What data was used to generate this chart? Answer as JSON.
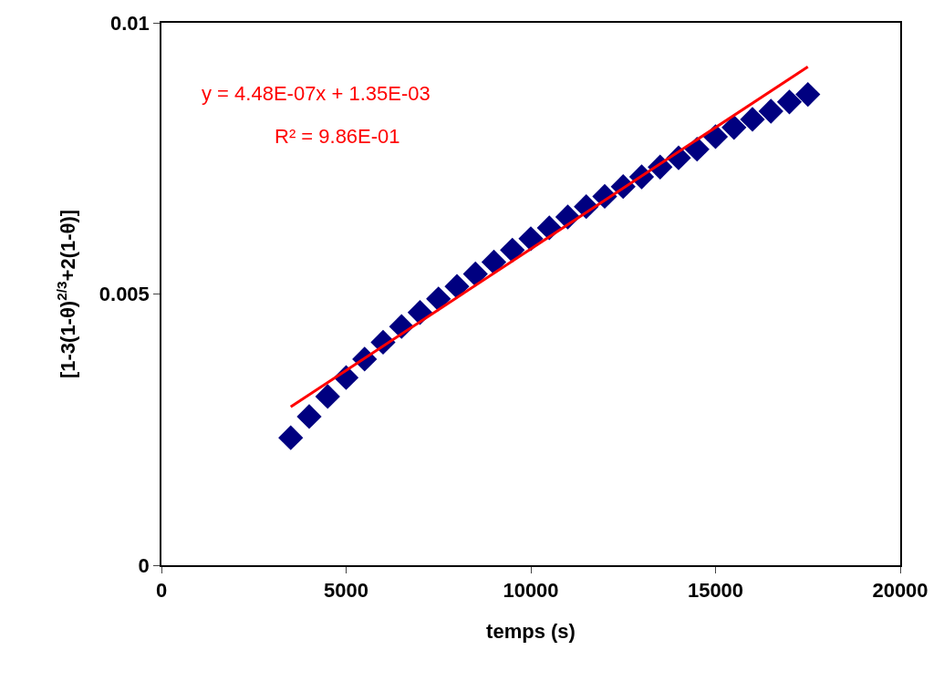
{
  "chart_data": {
    "type": "scatter",
    "xlabel": "temps (s)",
    "ylabel": "[1-3(1-θ)$^{2/3}$+2(1-θ)]",
    "series": [
      {
        "color": "#000080",
        "marker": "diamond",
        "x": [
          3500,
          4000,
          4500,
          5000,
          5500,
          6000,
          6500,
          7000,
          7500,
          8000,
          8500,
          9000,
          9500,
          10000,
          10500,
          11000,
          11500,
          12000,
          12500,
          13000,
          13500,
          14000,
          14500,
          15000,
          15500,
          16000,
          16500,
          17000,
          17500
        ],
        "values": [
          0.00235,
          0.00274,
          0.00311,
          0.00346,
          0.0038,
          0.00411,
          0.0044,
          0.00466,
          0.00491,
          0.00514,
          0.00537,
          0.00559,
          0.00581,
          0.00602,
          0.00622,
          0.00642,
          0.00661,
          0.0068,
          0.00698,
          0.00716,
          0.00734,
          0.00751,
          0.00767,
          0.0079,
          0.00807,
          0.00822,
          0.00837,
          0.00854,
          0.00868
        ]
      },
      {
        "type": "line",
        "color": "#ff0000",
        "marker": "none",
        "line_style": "solid",
        "x": [
          3500,
          17500
        ],
        "values": [
          0.00292,
          0.00919
        ]
      }
    ],
    "annotations": [
      "y = 4.48E-07x + 1.35E-03",
      "R² = 9.86E-01"
    ],
    "xlim": [
      0,
      20000
    ],
    "xticks": [
      0,
      5000,
      10000,
      15000,
      20000
    ],
    "ylim": [
      0,
      0.01
    ],
    "yticks": [
      0,
      0.005,
      0.01
    ]
  }
}
